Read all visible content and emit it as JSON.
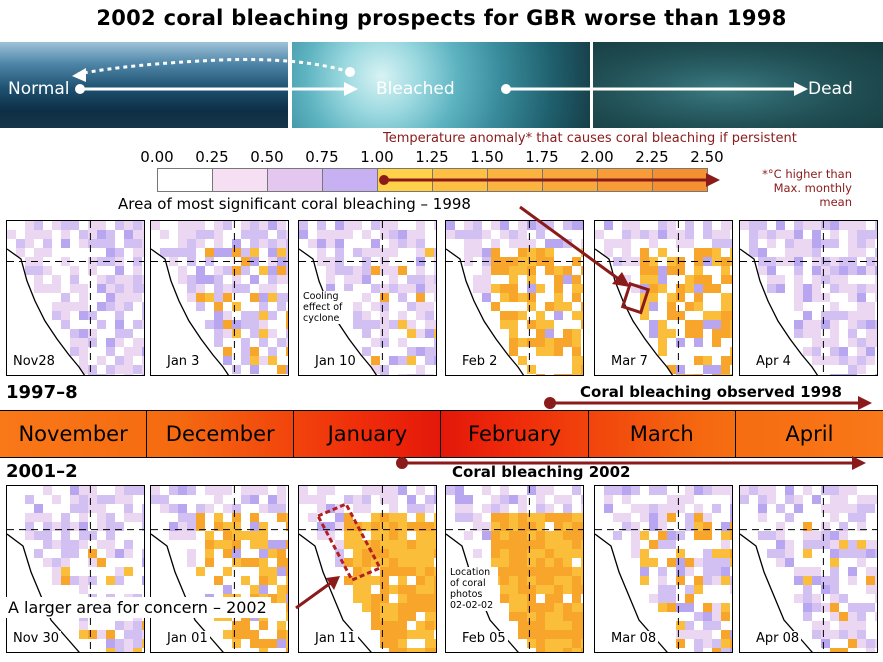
{
  "title": "2002 coral bleaching prospects for GBR worse than 1998",
  "banner": {
    "normal": "Normal",
    "bleached": "Bleached",
    "dead": "Dead"
  },
  "scale": {
    "caption": "Temperature anomaly* that causes coral bleaching if persistent",
    "ticks": [
      "0.00",
      "0.25",
      "0.50",
      "0.75",
      "1.00",
      "1.25",
      "1.50",
      "1.75",
      "2.00",
      "2.25",
      "2.50"
    ],
    "colors": [
      "#ffffff",
      "#f6dff2",
      "#e4c7ef",
      "#c7b1f2",
      "#ffd24a",
      "#fdc043",
      "#fbb43f",
      "#f9a83a",
      "#f79c36",
      "#f59032"
    ],
    "note_line1": "*°C higher than",
    "note_line2": "Max. monthly",
    "note_line3": "mean"
  },
  "area_label": "Area of most significant coral bleaching – 1998",
  "maps_1998": [
    "Nov28",
    "Jan 3",
    "Jan 10",
    "Feb 2",
    "Mar 7",
    "Apr 4"
  ],
  "cooling_note": "Cooling effect of cyclone",
  "year_1998": "1997–8",
  "year_2002": "2001–2",
  "months": [
    "November",
    "December",
    "January",
    "February",
    "March",
    "April"
  ],
  "observed_1998": "Coral bleaching observed 1998",
  "observed_2002": "Coral bleaching 2002",
  "maps_2002": [
    "Nov 30",
    "Jan 01",
    "Jan 11",
    "Feb 05",
    "Mar 08",
    "Apr 08"
  ],
  "location_note": "Location of coral photos 02-02-02",
  "concern_label": "A larger area for concern – 2002"
}
